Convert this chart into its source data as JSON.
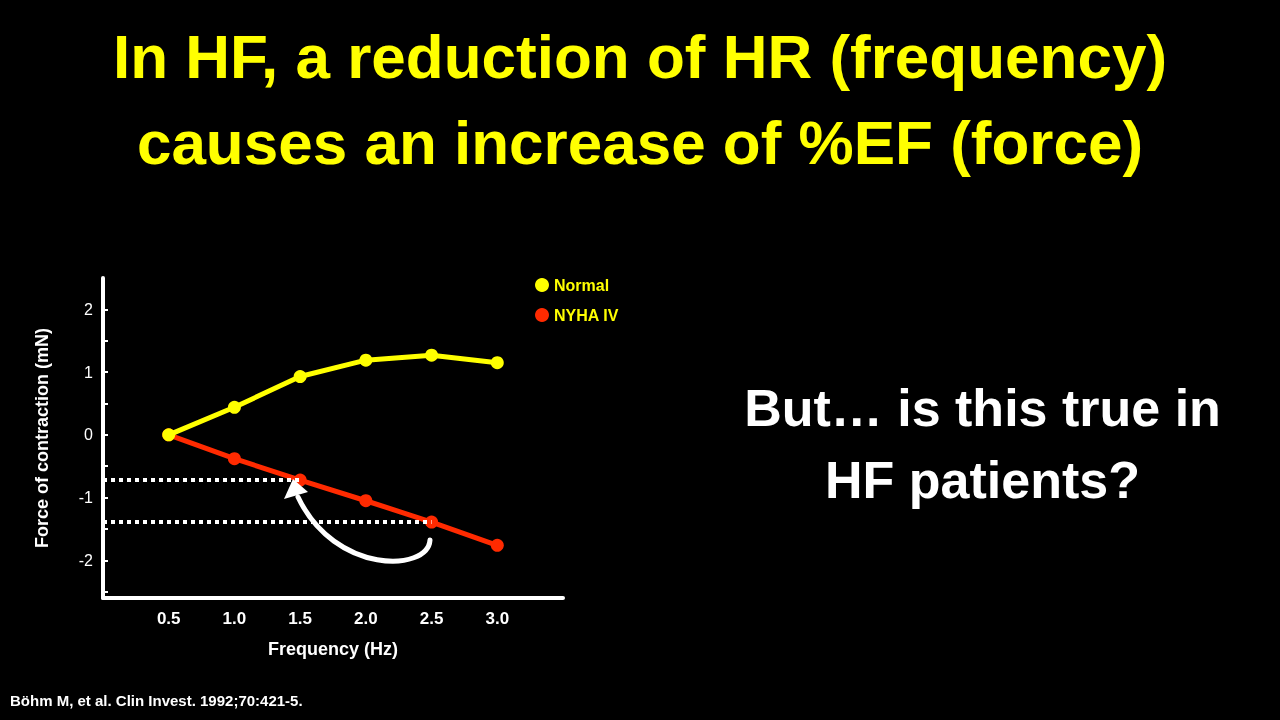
{
  "chart_data": {
    "type": "line",
    "title": "In HF, a reduction of HR (frequency) causes an increase of %EF (force)",
    "xlabel": "Frequency (Hz)",
    "ylabel": "Force of contraction (mN)",
    "x": [
      0.5,
      1.0,
      1.5,
      2.0,
      2.5,
      3.0
    ],
    "series": [
      {
        "name": "Normal",
        "color": "#ffff00",
        "values": [
          0,
          0.44,
          0.93,
          1.19,
          1.27,
          1.15
        ]
      },
      {
        "name": "NYHA IV",
        "color": "#ff2a00",
        "values": [
          0,
          -0.38,
          -0.72,
          -1.05,
          -1.39,
          -1.76
        ]
      }
    ],
    "xlim": [
      0,
      3.5
    ],
    "xticks": [
      {
        "value": 0.5,
        "label": "0.5"
      },
      {
        "value": 1.0,
        "label": "1.0"
      },
      {
        "value": 1.5,
        "label": "1.5"
      },
      {
        "value": 2.0,
        "label": "2.0"
      },
      {
        "value": 2.5,
        "label": "2.5"
      },
      {
        "value": 3.0,
        "label": "3.0"
      }
    ],
    "ylim": [
      -2.6,
      2.5
    ],
    "yticks": [
      {
        "value": -2.5,
        "label": null
      },
      -2,
      {
        "value": -1.5,
        "label": null
      },
      -1,
      {
        "value": -0.5,
        "label": null
      },
      0,
      {
        "value": 0.5,
        "label": null
      },
      1,
      {
        "value": 1.5,
        "label": null
      },
      2
    ],
    "ref_lines": [
      {
        "axis": "y",
        "value": -0.72,
        "color": "#ffffff",
        "line_style": "dotted"
      },
      {
        "axis": "y",
        "value": -1.39,
        "color": "#ffffff",
        "line_style": "dotted"
      }
    ],
    "annotations": [
      "But… is this true in HF patients?",
      "Böhm M, et al. Clin Invest. 1992;70:421-5."
    ],
    "legend": "top right",
    "marker": "circle",
    "line_style": "solid",
    "grid": false
  }
}
